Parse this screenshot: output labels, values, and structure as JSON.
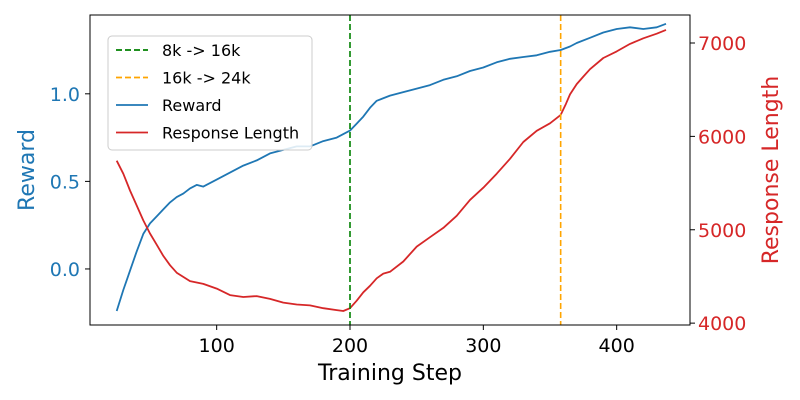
{
  "chart_data": {
    "type": "line",
    "xlabel": "Training Step",
    "ylabel": "Reward",
    "y2label": "Response Length",
    "xlim": [
      5,
      455
    ],
    "ylim": [
      -0.32,
      1.45
    ],
    "y2lim": [
      3980,
      7300
    ],
    "xticks": [
      100,
      200,
      300,
      400
    ],
    "yticks": [
      0.0,
      0.5,
      1.0
    ],
    "y2ticks": [
      4000,
      5000,
      6000,
      7000
    ],
    "grid": false,
    "legend_position": "upper left",
    "colors": {
      "reward": "#1f77b4",
      "length": "#d62728",
      "vline_1": "#008000",
      "vline_2": "#ffa500",
      "axis": "#000000"
    },
    "vlines": [
      {
        "x": 200,
        "label": "8k -> 16k",
        "color": "#008000",
        "style": "dashed"
      },
      {
        "x": 358,
        "label": "16k -> 24k",
        "color": "#ffa500",
        "style": "dashed"
      }
    ],
    "series": [
      {
        "name": "Reward",
        "axis": "left",
        "color": "#1f77b4",
        "x": [
          25,
          30,
          35,
          40,
          45,
          50,
          55,
          60,
          65,
          70,
          75,
          80,
          85,
          90,
          95,
          100,
          110,
          120,
          130,
          140,
          150,
          160,
          170,
          180,
          190,
          200,
          205,
          210,
          215,
          220,
          230,
          240,
          250,
          260,
          270,
          280,
          290,
          300,
          310,
          320,
          330,
          340,
          350,
          358,
          365,
          370,
          380,
          390,
          400,
          410,
          420,
          430,
          437
        ],
        "y": [
          -0.24,
          -0.12,
          -0.01,
          0.1,
          0.2,
          0.26,
          0.3,
          0.34,
          0.38,
          0.41,
          0.43,
          0.46,
          0.48,
          0.47,
          0.49,
          0.51,
          0.55,
          0.59,
          0.62,
          0.66,
          0.68,
          0.7,
          0.7,
          0.73,
          0.75,
          0.79,
          0.83,
          0.87,
          0.92,
          0.96,
          0.99,
          1.01,
          1.03,
          1.05,
          1.08,
          1.1,
          1.13,
          1.15,
          1.18,
          1.2,
          1.21,
          1.22,
          1.24,
          1.25,
          1.27,
          1.29,
          1.32,
          1.35,
          1.37,
          1.38,
          1.37,
          1.38,
          1.4
        ]
      },
      {
        "name": "Response Length",
        "axis": "right",
        "color": "#d62728",
        "x": [
          25,
          30,
          35,
          40,
          45,
          50,
          55,
          60,
          65,
          70,
          80,
          90,
          100,
          110,
          120,
          130,
          140,
          150,
          160,
          170,
          180,
          190,
          195,
          200,
          205,
          210,
          215,
          220,
          225,
          230,
          240,
          250,
          260,
          270,
          280,
          290,
          300,
          310,
          320,
          330,
          340,
          350,
          358,
          362,
          365,
          370,
          375,
          380,
          390,
          400,
          410,
          420,
          430,
          437
        ],
        "y": [
          5740,
          5600,
          5420,
          5260,
          5100,
          4960,
          4840,
          4720,
          4620,
          4540,
          4450,
          4420,
          4370,
          4300,
          4280,
          4290,
          4260,
          4220,
          4200,
          4190,
          4160,
          4140,
          4130,
          4160,
          4240,
          4330,
          4400,
          4480,
          4530,
          4550,
          4660,
          4820,
          4920,
          5020,
          5150,
          5320,
          5450,
          5600,
          5760,
          5940,
          6060,
          6140,
          6230,
          6350,
          6450,
          6560,
          6640,
          6720,
          6840,
          6910,
          6990,
          7050,
          7100,
          7140
        ]
      }
    ]
  }
}
